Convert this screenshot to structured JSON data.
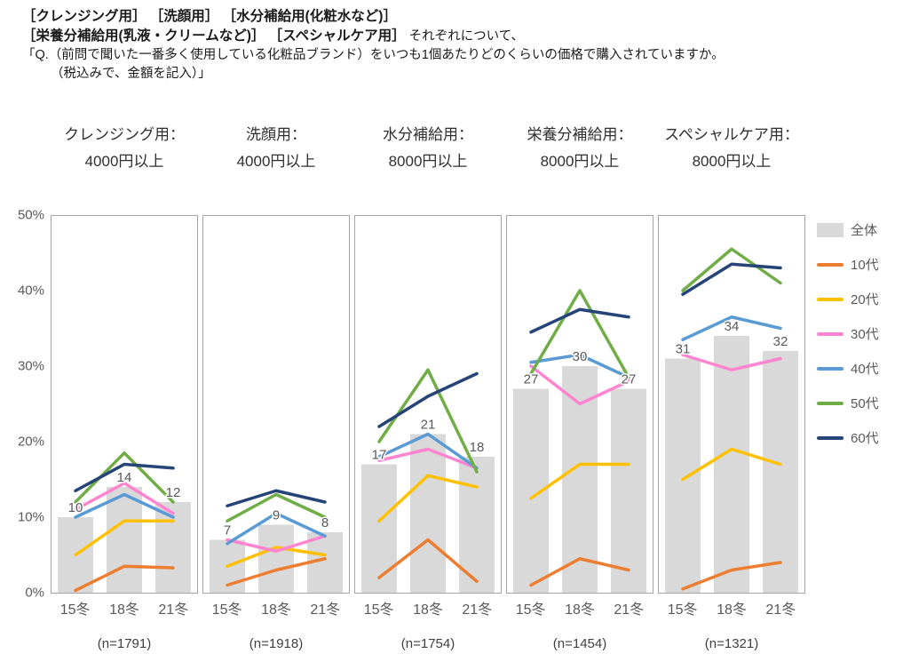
{
  "page": {
    "background": "#ffffff",
    "panel_border_color": "#a6a6a6",
    "bar_label_color": "#595959"
  },
  "header": {
    "line1": "［クレンジング用］ ［洗顔用］ ［水分補給用(化粧水など)］",
    "line2_bold": "［栄養分補給用(乳液・クリームなど)］ ［スペシャルケア用］",
    "line2_regular": " それぞれについて、",
    "question_line1": "「Q.（前問で聞いた一番多く使用している化粧品ブランド）をいつも1個あたりどのくらいの価格で購入されていますか。",
    "question_line2": "（税込みで、金額を記入）」"
  },
  "y_axis": {
    "tick_labels_top_to_bottom": [
      "50%",
      "40%",
      "30%",
      "20%",
      "10%",
      "0%"
    ]
  },
  "legend": {
    "position": "right",
    "items": [
      {
        "label": "全体",
        "type": "bar",
        "color": "#d9d9d9"
      },
      {
        "label": "10代",
        "type": "line",
        "color": "#ed7d31"
      },
      {
        "label": "20代",
        "type": "line",
        "color": "#ffc000"
      },
      {
        "label": "30代",
        "type": "line",
        "color": "#ff85d0"
      },
      {
        "label": "40代",
        "type": "line",
        "color": "#5b9bd5"
      },
      {
        "label": "50代",
        "type": "line",
        "color": "#70ad47"
      },
      {
        "label": "60代",
        "type": "line",
        "color": "#264478"
      }
    ]
  },
  "chart_data": {
    "type": "bar",
    "subtype": "small-multiple panels; gray bars = 全体 (%), overlaid colored lines = age groups",
    "categories": [
      "15冬",
      "18冬",
      "21冬"
    ],
    "ylim": [
      0,
      50
    ],
    "yticks_percent": [
      0,
      10,
      20,
      30,
      40,
      50
    ],
    "bar_series_name": "全体",
    "line_series_names": [
      "10代",
      "20代",
      "30代",
      "40代",
      "50代",
      "60代"
    ],
    "panels": [
      {
        "title_line1": "クレンジング用：",
        "title_line2": "4000円以上",
        "n_label": "(n=1791)",
        "bar_values": [
          10,
          14,
          12
        ],
        "bar_labels": [
          "10",
          "14",
          "12"
        ],
        "lines": [
          {
            "name": "10代",
            "values": [
              0.3,
              3.5,
              3.3
            ]
          },
          {
            "name": "20代",
            "values": [
              5,
              9.5,
              9.5
            ]
          },
          {
            "name": "30代",
            "values": [
              11,
              14.5,
              10.5
            ]
          },
          {
            "name": "40代",
            "values": [
              10,
              13,
              10
            ]
          },
          {
            "name": "50代",
            "values": [
              12,
              18.5,
              12
            ]
          },
          {
            "name": "60代",
            "values": [
              13.5,
              17,
              16.5
            ]
          }
        ]
      },
      {
        "title_line1": "洗顔用：",
        "title_line2": "4000円以上",
        "n_label": "(n=1918)",
        "bar_values": [
          7,
          9,
          8
        ],
        "bar_labels": [
          "7",
          "9",
          "8"
        ],
        "lines": [
          {
            "name": "10代",
            "values": [
              1,
              3,
              4.5
            ]
          },
          {
            "name": "20代",
            "values": [
              3.5,
              6,
              5
            ]
          },
          {
            "name": "30代",
            "values": [
              7,
              5.5,
              7.5
            ]
          },
          {
            "name": "40代",
            "values": [
              6.5,
              10.5,
              7.5
            ]
          },
          {
            "name": "50代",
            "values": [
              9.5,
              13,
              10
            ]
          },
          {
            "name": "60代",
            "values": [
              11.5,
              13.5,
              12
            ]
          }
        ]
      },
      {
        "title_line1": "水分補給用：",
        "title_line2": "8000円以上",
        "n_label": "(n=1754)",
        "bar_values": [
          17,
          21,
          18
        ],
        "bar_labels": [
          "17",
          "21",
          "18"
        ],
        "lines": [
          {
            "name": "10代",
            "values": [
              2,
              7,
              1.5
            ]
          },
          {
            "name": "20代",
            "values": [
              9.5,
              15.5,
              14
            ]
          },
          {
            "name": "30代",
            "values": [
              17.5,
              19,
              16.5
            ]
          },
          {
            "name": "40代",
            "values": [
              18,
              21,
              16.5
            ]
          },
          {
            "name": "50代",
            "values": [
              20,
              29.5,
              16
            ]
          },
          {
            "name": "60代",
            "values": [
              22,
              26,
              29
            ]
          }
        ]
      },
      {
        "title_line1": "栄養分補給用：",
        "title_line2": "8000円以上",
        "n_label": "(n=1454)",
        "bar_values": [
          27,
          30,
          27
        ],
        "bar_labels": [
          "27",
          "30",
          "27"
        ],
        "lines": [
          {
            "name": "10代",
            "values": [
              1,
              4.5,
              3
            ]
          },
          {
            "name": "20代",
            "values": [
              12.5,
              17,
              17
            ]
          },
          {
            "name": "30代",
            "values": [
              30,
              25,
              28
            ]
          },
          {
            "name": "40代",
            "values": [
              30.5,
              31.5,
              28.5
            ]
          },
          {
            "name": "50代",
            "values": [
              29,
              40,
              28.5
            ]
          },
          {
            "name": "60代",
            "values": [
              34.5,
              37.5,
              36.5
            ]
          }
        ]
      },
      {
        "title_line1": "スペシャルケア用：",
        "title_line2": "8000円以上",
        "n_label": "(n=1321)",
        "bar_values": [
          31,
          34,
          32
        ],
        "bar_labels": [
          "31",
          "34",
          "32"
        ],
        "lines": [
          {
            "name": "10代",
            "values": [
              0.5,
              3,
              4
            ]
          },
          {
            "name": "20代",
            "values": [
              15,
              19,
              17
            ]
          },
          {
            "name": "30代",
            "values": [
              31.5,
              29.5,
              31
            ]
          },
          {
            "name": "40代",
            "values": [
              33.5,
              36.5,
              35
            ]
          },
          {
            "name": "50代",
            "values": [
              40,
              45.5,
              41
            ]
          },
          {
            "name": "60代",
            "values": [
              39.5,
              43.5,
              43
            ]
          }
        ]
      }
    ]
  }
}
